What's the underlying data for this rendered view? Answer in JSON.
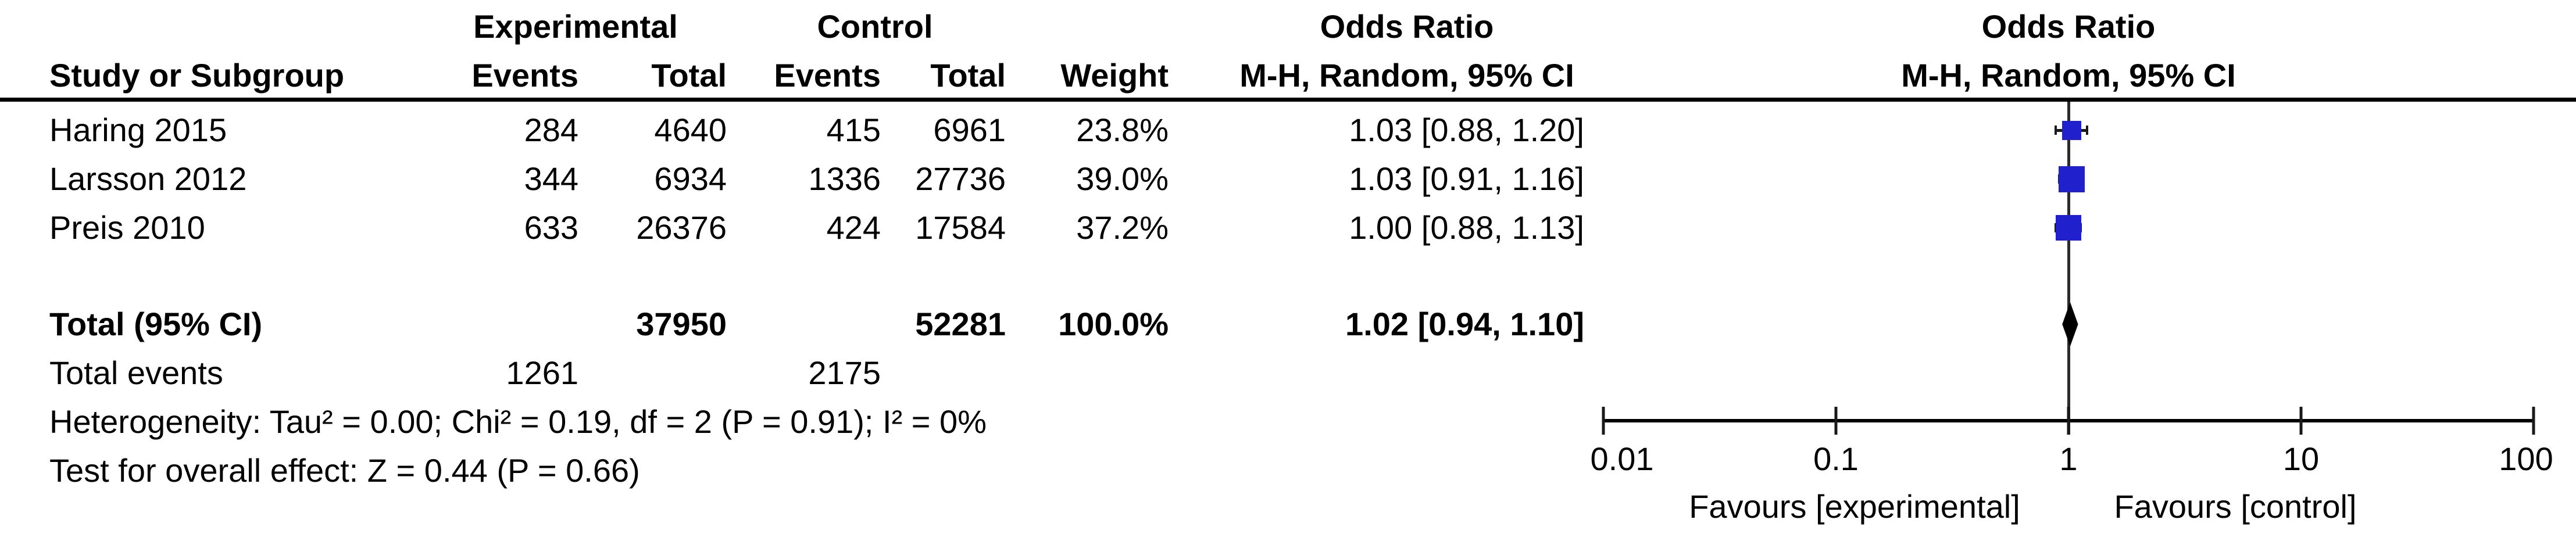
{
  "table": {
    "group_headers": {
      "experimental": "Experimental",
      "control": "Control",
      "odds_ratio_left": "Odds Ratio",
      "odds_ratio_right": "Odds Ratio"
    },
    "col_headers": {
      "study": "Study or Subgroup",
      "exp_events": "Events",
      "exp_total": "Total",
      "ctrl_events": "Events",
      "ctrl_total": "Total",
      "weight": "Weight",
      "mh_ci_left": "M-H, Random, 95% CI",
      "mh_ci_right": "M-H, Random, 95% CI"
    },
    "studies": [
      {
        "name": "Haring 2015",
        "exp_events": "284",
        "exp_total": "4640",
        "ctrl_events": "415",
        "ctrl_total": "6961",
        "weight": "23.8%",
        "or_ci": "1.03 [0.88, 1.20]"
      },
      {
        "name": "Larsson 2012",
        "exp_events": "344",
        "exp_total": "6934",
        "ctrl_events": "1336",
        "ctrl_total": "27736",
        "weight": "39.0%",
        "or_ci": "1.03 [0.91, 1.16]"
      },
      {
        "name": "Preis 2010",
        "exp_events": "633",
        "exp_total": "26376",
        "ctrl_events": "424",
        "ctrl_total": "17584",
        "weight": "37.2%",
        "or_ci": "1.00 [0.88, 1.13]"
      }
    ],
    "total_row": {
      "label": "Total (95% CI)",
      "exp_total": "37950",
      "ctrl_total": "52281",
      "weight": "100.0%",
      "or_ci": "1.02 [0.94, 1.10]"
    },
    "total_events": {
      "label": "Total events",
      "exp": "1261",
      "ctrl": "2175"
    },
    "heterogeneity": "Heterogeneity: Tau² = 0.00; Chi² = 0.19, df = 2 (P = 0.91); I² = 0%",
    "overall_effect": "Test for overall effect: Z = 0.44 (P = 0.66)"
  },
  "chart_data": {
    "type": "forest",
    "effect_measure": "Odds Ratio, M-H, Random, 95% CI",
    "x_axis": {
      "scale": "log",
      "ticks": [
        0.01,
        0.1,
        1,
        10,
        100
      ],
      "tick_labels": [
        "0.01",
        "0.1",
        "1",
        "10",
        "100"
      ],
      "left_label": "Favours [experimental]",
      "right_label": "Favours [control]"
    },
    "studies": [
      {
        "name": "Haring 2015",
        "or": 1.03,
        "ci_low": 0.88,
        "ci_high": 1.2,
        "weight_pct": 23.8
      },
      {
        "name": "Larsson 2012",
        "or": 1.03,
        "ci_low": 0.91,
        "ci_high": 1.16,
        "weight_pct": 39.0
      },
      {
        "name": "Preis 2010",
        "or": 1.0,
        "ci_low": 0.88,
        "ci_high": 1.13,
        "weight_pct": 37.2
      }
    ],
    "total": {
      "or": 1.02,
      "ci_low": 0.94,
      "ci_high": 1.1
    },
    "marker_color": "#2020CC",
    "diamond_color": "#000000",
    "line_color": "#1a1a1a"
  }
}
